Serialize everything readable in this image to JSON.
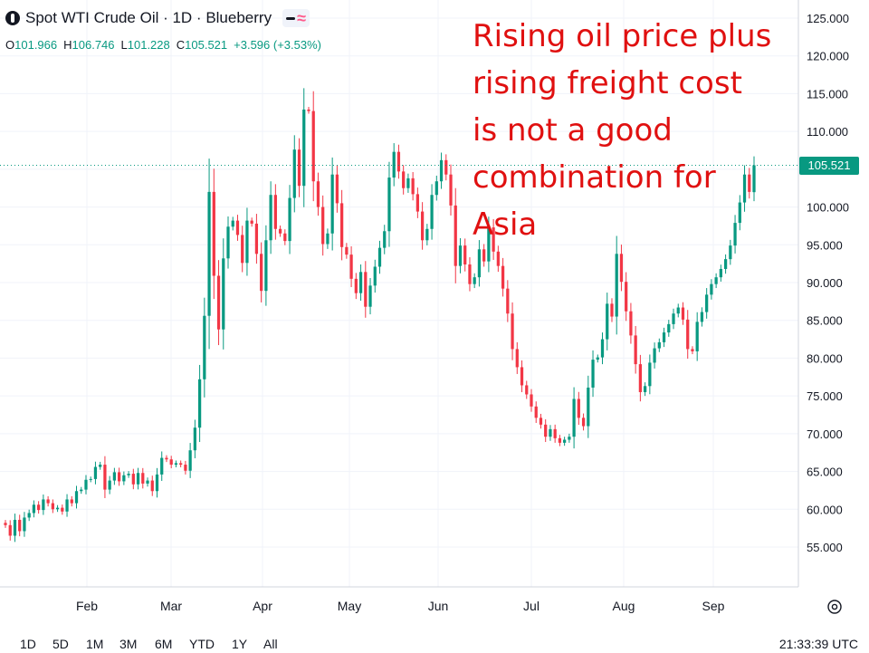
{
  "header": {
    "symbol_title": "Spot WTI Crude Oil · 1D · Blueberry",
    "logo_icon": "tradingview-logo-icon",
    "toggle_icons": [
      "minus-icon",
      "wave-icon"
    ],
    "ohlc": [
      {
        "key": "O",
        "value": "101.966"
      },
      {
        "key": "H",
        "value": "106.746"
      },
      {
        "key": "L",
        "value": "101.228"
      },
      {
        "key": "C",
        "value": "105.521"
      },
      {
        "key": "",
        "value": "+3.596 (+3.53%)"
      }
    ]
  },
  "annotation": {
    "text": "Rising oil price plus\nrising freight cost\nis not a good\ncombination for\nAsia",
    "color": "#e01010"
  },
  "price_tag": "105.521",
  "colors": {
    "up": "#089981",
    "down": "#f23645",
    "grid": "#f0f3fa",
    "axis_text": "#131722"
  },
  "bottom_bar": {
    "ranges": [
      "1D",
      "5D",
      "1M",
      "3M",
      "6M",
      "YTD",
      "1Y",
      "All"
    ],
    "clock": "21:33:39 UTC"
  },
  "chart_data": {
    "type": "candlestick",
    "title": "Spot WTI Crude Oil · 1D · Blueberry",
    "y_ticks": [
      "125.000",
      "120.000",
      "115.000",
      "110.000",
      "105.000",
      "100.000",
      "95.000",
      "90.000",
      "85.000",
      "80.000",
      "75.000",
      "70.000",
      "65.000",
      "60.000",
      "55.000"
    ],
    "y_tick_values": [
      125,
      120,
      115,
      110,
      105,
      100,
      95,
      90,
      85,
      80,
      75,
      70,
      65,
      60,
      55
    ],
    "x_ticks": [
      "Feb",
      "Mar",
      "Apr",
      "May",
      "Jun",
      "Jul",
      "Aug",
      "Sep"
    ],
    "ylim": [
      49.5,
      126.5
    ],
    "last_price": 105.521,
    "grid": true,
    "candles": [
      [
        58.2,
        57.9
      ],
      [
        57.9,
        56.5
      ],
      [
        56.5,
        58.6
      ],
      [
        58.6,
        57.1
      ],
      [
        57.1,
        58.9
      ],
      [
        58.9,
        59.5
      ],
      [
        59.5,
        60.6
      ],
      [
        60.6,
        59.9
      ],
      [
        59.9,
        61.3
      ],
      [
        61.3,
        60.8
      ],
      [
        60.8,
        60.0
      ],
      [
        60.0,
        60.2
      ],
      [
        60.2,
        59.7
      ],
      [
        59.7,
        61.3
      ],
      [
        61.3,
        60.8
      ],
      [
        60.8,
        62.4
      ],
      [
        62.4,
        62.6
      ],
      [
        62.6,
        63.9
      ],
      [
        63.9,
        64.0
      ],
      [
        64.0,
        65.6
      ],
      [
        65.6,
        65.9
      ],
      [
        65.9,
        62.6
      ],
      [
        62.6,
        63.8
      ],
      [
        63.8,
        64.9
      ],
      [
        64.9,
        63.7
      ],
      [
        63.7,
        64.5
      ],
      [
        64.5,
        64.7
      ],
      [
        64.7,
        63.3
      ],
      [
        63.3,
        64.8
      ],
      [
        64.8,
        63.4
      ],
      [
        63.4,
        63.8
      ],
      [
        63.8,
        62.4
      ],
      [
        62.4,
        64.6
      ],
      [
        64.6,
        66.8
      ],
      [
        66.8,
        66.6
      ],
      [
        66.6,
        65.9
      ],
      [
        65.9,
        66.1
      ],
      [
        66.1,
        65.9
      ],
      [
        65.9,
        65.1
      ],
      [
        65.1,
        67.8
      ],
      [
        67.8,
        70.8
      ],
      [
        70.8,
        77.2
      ],
      [
        77.2,
        85.6
      ],
      [
        85.6,
        102.0
      ],
      [
        102.0,
        90.9
      ],
      [
        90.9,
        83.8
      ],
      [
        83.8,
        93.2
      ],
      [
        93.2,
        97.4
      ],
      [
        97.4,
        98.2
      ],
      [
        98.2,
        96.3
      ],
      [
        96.3,
        92.6
      ],
      [
        92.6,
        98.2
      ],
      [
        98.2,
        97.8
      ],
      [
        97.8,
        93.8
      ],
      [
        93.8,
        88.9
      ],
      [
        88.9,
        95.6
      ],
      [
        95.6,
        101.6
      ],
      [
        101.6,
        97.1
      ],
      [
        97.1,
        96.5
      ],
      [
        96.5,
        95.5
      ],
      [
        95.5,
        101.2
      ],
      [
        101.2,
        107.6
      ],
      [
        107.6,
        102.8
      ],
      [
        102.8,
        112.9
      ],
      [
        112.9,
        112.7
      ],
      [
        112.7,
        103.4
      ],
      [
        103.4,
        100.0
      ],
      [
        100.0,
        95.1
      ],
      [
        95.1,
        96.5
      ],
      [
        96.5,
        104.3
      ],
      [
        104.3,
        100.5
      ],
      [
        100.5,
        94.7
      ],
      [
        94.7,
        93.7
      ],
      [
        93.7,
        90.5
      ],
      [
        90.5,
        88.6
      ],
      [
        88.6,
        91.4
      ],
      [
        91.4,
        86.8
      ],
      [
        86.8,
        89.6
      ],
      [
        89.6,
        92.1
      ],
      [
        92.1,
        94.6
      ],
      [
        94.6,
        96.8
      ],
      [
        96.8,
        103.9
      ],
      [
        103.9,
        107.3
      ],
      [
        107.3,
        104.7
      ],
      [
        104.7,
        102.5
      ],
      [
        102.5,
        103.8
      ],
      [
        103.8,
        101.7
      ],
      [
        101.7,
        99.4
      ],
      [
        99.4,
        95.6
      ],
      [
        95.6,
        97.1
      ],
      [
        97.1,
        101.6
      ],
      [
        101.6,
        103.4
      ],
      [
        103.4,
        106.2
      ],
      [
        106.2,
        104.3
      ],
      [
        104.3,
        100.2
      ],
      [
        100.2,
        92.2
      ],
      [
        92.2,
        94.9
      ],
      [
        94.9,
        92.4
      ],
      [
        92.4,
        89.8
      ],
      [
        89.8,
        90.7
      ],
      [
        90.7,
        94.4
      ],
      [
        94.4,
        92.8
      ],
      [
        92.8,
        97.3
      ],
      [
        97.3,
        94.1
      ],
      [
        94.1,
        92.2
      ],
      [
        92.2,
        89.2
      ],
      [
        89.2,
        85.9
      ],
      [
        85.9,
        81.2
      ],
      [
        81.2,
        78.8
      ],
      [
        78.8,
        76.4
      ],
      [
        76.4,
        75.2
      ],
      [
        75.2,
        73.6
      ],
      [
        73.6,
        72.1
      ],
      [
        72.1,
        71.2
      ],
      [
        71.2,
        69.6
      ],
      [
        69.6,
        70.6
      ],
      [
        70.6,
        69.4
      ],
      [
        69.4,
        68.8
      ],
      [
        68.8,
        69.2
      ],
      [
        69.2,
        69.6
      ],
      [
        69.6,
        74.6
      ],
      [
        74.6,
        72.1
      ],
      [
        72.1,
        71.0
      ],
      [
        71.0,
        76.1
      ],
      [
        76.1,
        79.8
      ],
      [
        79.8,
        80.1
      ],
      [
        80.1,
        82.5
      ],
      [
        82.5,
        87.2
      ],
      [
        87.2,
        85.5
      ],
      [
        85.5,
        93.8
      ],
      [
        93.8,
        90.1
      ],
      [
        90.1,
        86.2
      ],
      [
        86.2,
        83.0
      ],
      [
        83.0,
        79.2
      ],
      [
        79.2,
        75.5
      ],
      [
        75.5,
        76.3
      ],
      [
        76.3,
        79.4
      ],
      [
        79.4,
        81.3
      ],
      [
        81.3,
        82.1
      ],
      [
        82.1,
        83.4
      ],
      [
        83.4,
        84.5
      ],
      [
        84.5,
        85.9
      ],
      [
        85.9,
        86.7
      ],
      [
        86.7,
        85.1
      ],
      [
        85.1,
        81.2
      ],
      [
        81.2,
        80.9
      ],
      [
        80.9,
        84.8
      ],
      [
        84.8,
        86.1
      ],
      [
        86.1,
        88.4
      ],
      [
        88.4,
        89.8
      ],
      [
        89.8,
        90.7
      ],
      [
        90.7,
        91.8
      ],
      [
        91.8,
        93.1
      ],
      [
        93.1,
        94.9
      ],
      [
        94.9,
        97.9
      ],
      [
        97.9,
        100.6
      ],
      [
        100.6,
        104.3
      ],
      [
        104.3,
        102.0
      ],
      [
        101.966,
        105.521
      ]
    ]
  }
}
